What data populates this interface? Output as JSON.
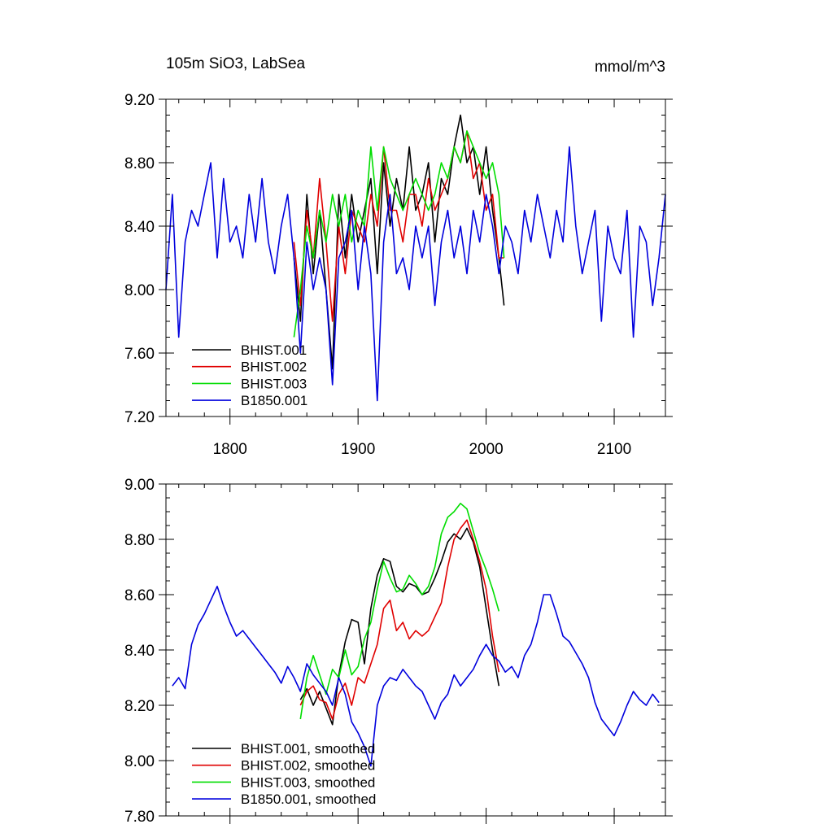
{
  "figure": {
    "title_left": "105m SiO3, LabSea",
    "title_right": "mmol/m^3"
  },
  "colors": {
    "BHIST.001": "#000000",
    "BHIST.002": "#e00000",
    "BHIST.003": "#00dd00",
    "B1850.001": "#0000dd"
  },
  "chart_data": [
    {
      "type": "line",
      "title": "105m SiO3, LabSea",
      "units": "mmol/m^3",
      "xlim": [
        1750,
        2140
      ],
      "ylim": [
        7.2,
        9.2
      ],
      "xticks": [
        1800,
        1900,
        2000,
        2100
      ],
      "yticks": [
        7.2,
        7.6,
        8.0,
        8.4,
        8.8,
        9.2
      ],
      "ytick_labels": [
        "7.20",
        "7.60",
        "8.00",
        "8.40",
        "8.80",
        "9.20"
      ],
      "xtick_labels": [
        "1800",
        "1900",
        "2000",
        "2100"
      ],
      "legend_position": "bottom-left",
      "series": [
        {
          "name": "BHIST.001",
          "color": "#000000",
          "x": [
            1850,
            1855,
            1860,
            1865,
            1870,
            1875,
            1880,
            1885,
            1890,
            1895,
            1900,
            1905,
            1910,
            1915,
            1920,
            1925,
            1930,
            1935,
            1940,
            1945,
            1950,
            1955,
            1960,
            1965,
            1970,
            1975,
            1980,
            1985,
            1990,
            1995,
            2000,
            2005,
            2010,
            2014
          ],
          "y": [
            8.2,
            7.8,
            8.6,
            8.1,
            8.5,
            8.0,
            7.5,
            8.6,
            8.2,
            8.6,
            8.3,
            8.5,
            8.7,
            8.1,
            8.8,
            8.4,
            8.7,
            8.5,
            8.9,
            8.5,
            8.6,
            8.8,
            8.3,
            8.7,
            8.6,
            8.9,
            9.1,
            8.8,
            8.9,
            8.6,
            8.9,
            8.5,
            8.2,
            7.9
          ]
        },
        {
          "name": "BHIST.002",
          "color": "#e00000",
          "x": [
            1850,
            1855,
            1860,
            1865,
            1870,
            1875,
            1880,
            1885,
            1890,
            1895,
            1900,
            1905,
            1910,
            1915,
            1920,
            1925,
            1930,
            1935,
            1940,
            1945,
            1950,
            1955,
            1960,
            1965,
            1970,
            1975,
            1980,
            1985,
            1990,
            1995,
            2000,
            2005,
            2010,
            2014
          ],
          "y": [
            8.3,
            7.9,
            8.5,
            8.2,
            8.7,
            8.3,
            7.8,
            8.4,
            8.1,
            8.5,
            8.4,
            8.3,
            8.6,
            8.4,
            8.9,
            8.5,
            8.5,
            8.3,
            8.6,
            8.6,
            8.4,
            8.7,
            8.5,
            8.6,
            8.7,
            8.9,
            8.8,
            9.0,
            8.7,
            8.8,
            8.5,
            8.6,
            8.2,
            8.2
          ]
        },
        {
          "name": "BHIST.003",
          "color": "#00dd00",
          "x": [
            1850,
            1855,
            1860,
            1865,
            1870,
            1875,
            1880,
            1885,
            1890,
            1895,
            1900,
            1905,
            1910,
            1915,
            1920,
            1925,
            1930,
            1935,
            1940,
            1945,
            1950,
            1955,
            1960,
            1965,
            1970,
            1975,
            1980,
            1985,
            1990,
            1995,
            2000,
            2005,
            2010,
            2014
          ],
          "y": [
            7.7,
            8.0,
            8.4,
            8.2,
            8.5,
            8.3,
            8.6,
            8.4,
            8.6,
            8.3,
            8.5,
            8.4,
            8.9,
            8.5,
            8.9,
            8.7,
            8.6,
            8.5,
            8.6,
            8.7,
            8.6,
            8.5,
            8.6,
            8.8,
            8.7,
            8.9,
            8.8,
            9.0,
            8.9,
            8.8,
            8.7,
            8.8,
            8.6,
            8.2
          ]
        },
        {
          "name": "B1850.001",
          "color": "#0000dd",
          "x": [
            1750,
            1755,
            1760,
            1765,
            1770,
            1775,
            1780,
            1785,
            1790,
            1795,
            1800,
            1805,
            1810,
            1815,
            1820,
            1825,
            1830,
            1835,
            1840,
            1845,
            1850,
            1855,
            1860,
            1865,
            1870,
            1875,
            1880,
            1885,
            1890,
            1895,
            1900,
            1905,
            1910,
            1915,
            1920,
            1925,
            1930,
            1935,
            1940,
            1945,
            1950,
            1955,
            1960,
            1965,
            1970,
            1975,
            1980,
            1985,
            1990,
            1995,
            2000,
            2005,
            2010,
            2015,
            2020,
            2025,
            2030,
            2035,
            2040,
            2045,
            2050,
            2055,
            2060,
            2065,
            2070,
            2075,
            2080,
            2085,
            2090,
            2095,
            2100,
            2105,
            2110,
            2115,
            2120,
            2125,
            2130,
            2135,
            2140
          ],
          "y": [
            8.0,
            8.6,
            7.7,
            8.3,
            8.5,
            8.4,
            8.6,
            8.8,
            8.2,
            8.7,
            8.3,
            8.4,
            8.2,
            8.6,
            8.3,
            8.7,
            8.3,
            8.1,
            8.4,
            8.6,
            8.2,
            7.6,
            8.3,
            8.0,
            8.2,
            8.0,
            7.4,
            8.2,
            8.3,
            8.5,
            8.0,
            8.4,
            8.1,
            7.3,
            8.3,
            8.6,
            8.1,
            8.2,
            8.0,
            8.4,
            8.2,
            8.4,
            7.9,
            8.3,
            8.5,
            8.2,
            8.4,
            8.1,
            8.5,
            8.3,
            8.6,
            8.4,
            8.1,
            8.4,
            8.3,
            8.1,
            8.5,
            8.3,
            8.6,
            8.4,
            8.2,
            8.5,
            8.3,
            8.9,
            8.4,
            8.1,
            8.3,
            8.5,
            7.8,
            8.4,
            8.2,
            8.1,
            8.5,
            7.7,
            8.4,
            8.3,
            7.9,
            8.2,
            8.6
          ]
        }
      ]
    },
    {
      "type": "line",
      "xlim": [
        1750,
        2140
      ],
      "ylim": [
        7.8,
        9.0
      ],
      "xticks": [
        1800,
        1900,
        2000,
        2100
      ],
      "yticks": [
        7.8,
        8.0,
        8.2,
        8.4,
        8.6,
        8.8,
        9.0
      ],
      "ytick_labels": [
        "7.80",
        "8.00",
        "8.20",
        "8.40",
        "8.60",
        "8.80",
        "9.00"
      ],
      "legend_position": "bottom-left",
      "series": [
        {
          "name": "BHIST.001, smoothed",
          "color": "#000000",
          "x": [
            1855,
            1860,
            1865,
            1870,
            1875,
            1880,
            1885,
            1890,
            1895,
            1900,
            1905,
            1910,
            1915,
            1920,
            1925,
            1930,
            1935,
            1940,
            1945,
            1950,
            1955,
            1960,
            1965,
            1970,
            1975,
            1980,
            1985,
            1990,
            1995,
            2000,
            2005,
            2010
          ],
          "y": [
            8.22,
            8.26,
            8.2,
            8.25,
            8.19,
            8.13,
            8.31,
            8.43,
            8.51,
            8.5,
            8.35,
            8.55,
            8.67,
            8.73,
            8.72,
            8.63,
            8.61,
            8.64,
            8.63,
            8.6,
            8.61,
            8.66,
            8.72,
            8.79,
            8.82,
            8.8,
            8.84,
            8.79,
            8.7,
            8.55,
            8.4,
            8.27
          ]
        },
        {
          "name": "BHIST.002, smoothed",
          "color": "#e00000",
          "x": [
            1855,
            1860,
            1865,
            1870,
            1875,
            1880,
            1885,
            1890,
            1895,
            1900,
            1905,
            1910,
            1915,
            1920,
            1925,
            1930,
            1935,
            1940,
            1945,
            1950,
            1955,
            1960,
            1965,
            1970,
            1975,
            1980,
            1985,
            1990,
            1995,
            2000,
            2005,
            2010
          ],
          "y": [
            8.2,
            8.25,
            8.27,
            8.22,
            8.21,
            8.15,
            8.24,
            8.28,
            8.2,
            8.3,
            8.28,
            8.35,
            8.42,
            8.55,
            8.58,
            8.47,
            8.5,
            8.44,
            8.47,
            8.45,
            8.47,
            8.52,
            8.57,
            8.7,
            8.8,
            8.84,
            8.87,
            8.8,
            8.72,
            8.62,
            8.45,
            8.32
          ]
        },
        {
          "name": "BHIST.003, smoothed",
          "color": "#00dd00",
          "x": [
            1855,
            1860,
            1865,
            1870,
            1875,
            1880,
            1885,
            1890,
            1895,
            1900,
            1905,
            1910,
            1915,
            1920,
            1925,
            1930,
            1935,
            1940,
            1945,
            1950,
            1955,
            1960,
            1965,
            1970,
            1975,
            1980,
            1985,
            1990,
            1995,
            2000,
            2005,
            2010
          ],
          "y": [
            8.15,
            8.3,
            8.38,
            8.31,
            8.24,
            8.33,
            8.3,
            8.4,
            8.31,
            8.34,
            8.44,
            8.5,
            8.62,
            8.72,
            8.66,
            8.61,
            8.62,
            8.67,
            8.64,
            8.6,
            8.63,
            8.7,
            8.82,
            8.88,
            8.9,
            8.93,
            8.91,
            8.83,
            8.75,
            8.69,
            8.62,
            8.54
          ]
        },
        {
          "name": "B1850.001, smoothed",
          "color": "#0000dd",
          "x": [
            1755,
            1760,
            1765,
            1770,
            1775,
            1780,
            1785,
            1790,
            1795,
            1800,
            1805,
            1810,
            1815,
            1820,
            1825,
            1830,
            1835,
            1840,
            1845,
            1850,
            1855,
            1860,
            1865,
            1870,
            1875,
            1880,
            1885,
            1890,
            1895,
            1900,
            1905,
            1910,
            1915,
            1920,
            1925,
            1930,
            1935,
            1940,
            1945,
            1950,
            1955,
            1960,
            1965,
            1970,
            1975,
            1980,
            1985,
            1990,
            1995,
            2000,
            2005,
            2010,
            2015,
            2020,
            2025,
            2030,
            2035,
            2040,
            2045,
            2050,
            2055,
            2060,
            2065,
            2070,
            2075,
            2080,
            2085,
            2090,
            2095,
            2100,
            2105,
            2110,
            2115,
            2120,
            2125,
            2130,
            2135
          ],
          "y": [
            8.27,
            8.3,
            8.26,
            8.42,
            8.49,
            8.53,
            8.58,
            8.63,
            8.56,
            8.5,
            8.45,
            8.47,
            8.44,
            8.41,
            8.38,
            8.35,
            8.32,
            8.28,
            8.34,
            8.3,
            8.25,
            8.35,
            8.31,
            8.28,
            8.25,
            8.2,
            8.3,
            8.24,
            8.14,
            8.1,
            8.05,
            7.98,
            8.2,
            8.27,
            8.3,
            8.29,
            8.33,
            8.3,
            8.27,
            8.25,
            8.2,
            8.15,
            8.21,
            8.24,
            8.31,
            8.27,
            8.3,
            8.33,
            8.38,
            8.42,
            8.38,
            8.36,
            8.32,
            8.34,
            8.3,
            8.38,
            8.42,
            8.5,
            8.6,
            8.6,
            8.53,
            8.45,
            8.43,
            8.39,
            8.35,
            8.3,
            8.21,
            8.15,
            8.12,
            8.09,
            8.14,
            8.2,
            8.25,
            8.22,
            8.2,
            8.24,
            8.21
          ]
        }
      ]
    }
  ]
}
